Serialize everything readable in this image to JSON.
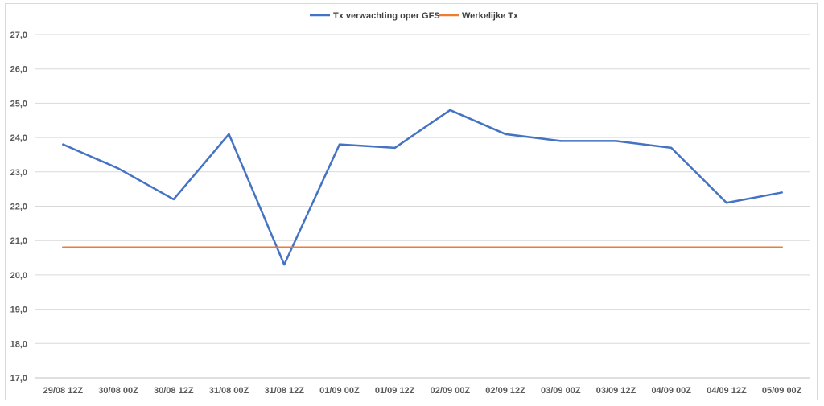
{
  "chart_data": {
    "type": "line",
    "categories": [
      "29/08 12Z",
      "30/08 00Z",
      "30/08 12Z",
      "31/08 00Z",
      "31/08 12Z",
      "01/09 00Z",
      "01/09 12Z",
      "02/09 00Z",
      "02/09 12Z",
      "03/09 00Z",
      "03/09 12Z",
      "04/09 00Z",
      "04/09 12Z",
      "05/09 00Z"
    ],
    "series": [
      {
        "name": "Tx verwachting oper GFS",
        "color": "#4472c4",
        "values": [
          23.8,
          23.1,
          22.2,
          24.1,
          20.3,
          23.8,
          23.7,
          24.8,
          24.1,
          23.9,
          23.9,
          23.7,
          22.1,
          22.4
        ]
      },
      {
        "name": "Werkelijke Tx",
        "color": "#ed7d31",
        "values": [
          20.8,
          20.8,
          20.8,
          20.8,
          20.8,
          20.8,
          20.8,
          20.8,
          20.8,
          20.8,
          20.8,
          20.8,
          20.8,
          20.8
        ]
      }
    ],
    "y_ticks": [
      "17,0",
      "18,0",
      "19,0",
      "20,0",
      "21,0",
      "22,0",
      "23,0",
      "24,0",
      "25,0",
      "26,0",
      "27,0"
    ],
    "ylim": [
      17,
      27
    ],
    "grid": true,
    "legend_position": "top"
  }
}
